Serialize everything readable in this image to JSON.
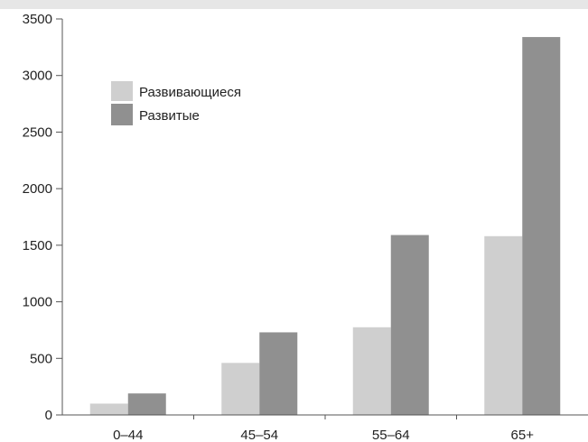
{
  "chart_data": {
    "type": "bar",
    "categories": [
      "0–44",
      "45–54",
      "55–64",
      "65+"
    ],
    "series": [
      {
        "name": "Развивающиеся",
        "values": [
          100,
          460,
          775,
          1580
        ],
        "color": "#cfcfcf"
      },
      {
        "name": "Развитые",
        "values": [
          190,
          730,
          1590,
          3340
        ],
        "color": "#909090"
      }
    ],
    "title": "",
    "xlabel": "",
    "ylabel": "",
    "ylim": [
      0,
      3500
    ],
    "yticks": [
      "0",
      "500",
      "1000",
      "1500",
      "2000",
      "2500",
      "3000",
      "3500"
    ],
    "grid": false,
    "legend_position": "top-left"
  }
}
